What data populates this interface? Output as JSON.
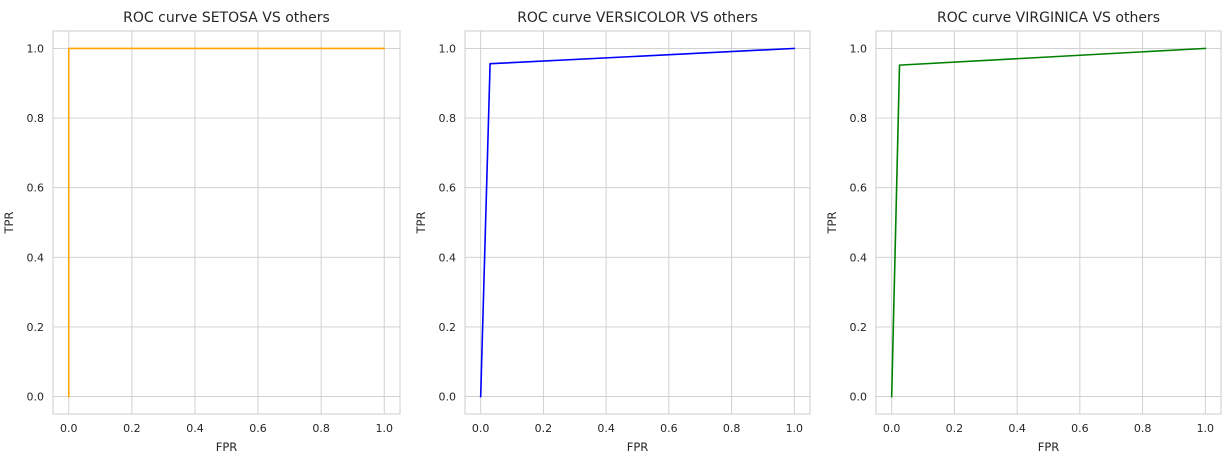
{
  "chart_data": [
    {
      "type": "line",
      "title": "ROC curve SETOSA VS others",
      "xlabel": "FPR",
      "ylabel": "TPR",
      "xlim": [
        -0.05,
        1.05
      ],
      "ylim": [
        -0.05,
        1.05
      ],
      "xticks": [
        "0.0",
        "0.2",
        "0.4",
        "0.6",
        "0.8",
        "1.0"
      ],
      "yticks": [
        "0.0",
        "0.2",
        "0.4",
        "0.6",
        "0.8",
        "1.0"
      ],
      "grid": true,
      "legend": "none",
      "series": [
        {
          "color": "#ffa500",
          "x": [
            0.0,
            0.0,
            1.0
          ],
          "y": [
            0.0,
            1.0,
            1.0
          ]
        }
      ]
    },
    {
      "type": "line",
      "title": "ROC curve VERSICOLOR VS others",
      "xlabel": "FPR",
      "ylabel": "TPR",
      "xlim": [
        -0.05,
        1.05
      ],
      "ylim": [
        -0.05,
        1.05
      ],
      "xticks": [
        "0.0",
        "0.2",
        "0.4",
        "0.6",
        "0.8",
        "1.0"
      ],
      "yticks": [
        "0.0",
        "0.2",
        "0.4",
        "0.6",
        "0.8",
        "1.0"
      ],
      "grid": true,
      "legend": "none",
      "series": [
        {
          "color": "#0000ff",
          "x": [
            0.0,
            0.03,
            1.0
          ],
          "y": [
            0.0,
            0.956,
            1.0
          ]
        }
      ]
    },
    {
      "type": "line",
      "title": "ROC curve VIRGINICA VS others",
      "xlabel": "FPR",
      "ylabel": "TPR",
      "xlim": [
        -0.05,
        1.05
      ],
      "ylim": [
        -0.05,
        1.05
      ],
      "xticks": [
        "0.0",
        "0.2",
        "0.4",
        "0.6",
        "0.8",
        "1.0"
      ],
      "yticks": [
        "0.0",
        "0.2",
        "0.4",
        "0.6",
        "0.8",
        "1.0"
      ],
      "grid": true,
      "legend": "none",
      "series": [
        {
          "color": "#008000",
          "x": [
            0.0,
            0.025,
            1.0
          ],
          "y": [
            0.0,
            0.952,
            1.0
          ]
        }
      ]
    }
  ]
}
